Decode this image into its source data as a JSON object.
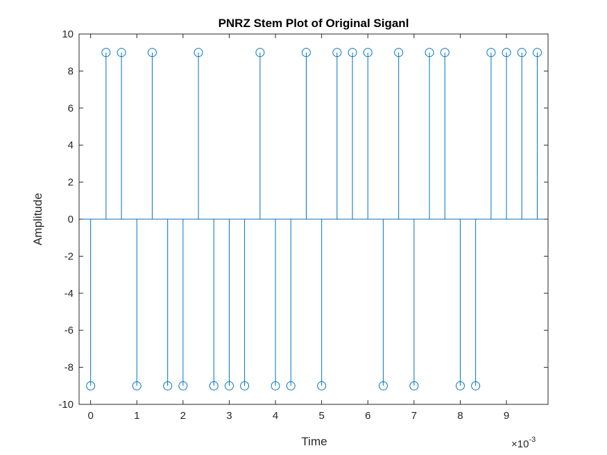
{
  "chart_data": {
    "type": "stem",
    "title": "PNRZ Stem Plot of Original Siganl",
    "xlabel": "Time",
    "ylabel": "Amplitude",
    "x_multiplier_label": "×10",
    "x_multiplier_exponent": "-3",
    "xlim": [
      -0.25,
      9.9
    ],
    "ylim": [
      -10,
      10
    ],
    "x_ticks": [
      "0",
      "1",
      "2",
      "3",
      "4",
      "5",
      "6",
      "7",
      "8",
      "9"
    ],
    "y_ticks": [
      "10",
      "8",
      "6",
      "4",
      "2",
      "0",
      "-2",
      "-4",
      "-6",
      "-8",
      "-10"
    ],
    "x_tick_values": [
      0,
      1,
      2,
      3,
      4,
      5,
      6,
      7,
      8,
      9
    ],
    "y_tick_values": [
      10,
      8,
      6,
      4,
      2,
      0,
      -2,
      -4,
      -6,
      -8,
      -10
    ],
    "x_units_note": "x values in units of 10^-3 (Time)",
    "x": [
      0,
      0.333,
      0.667,
      1.0,
      1.333,
      1.667,
      2.0,
      2.333,
      2.667,
      3.0,
      3.333,
      3.667,
      4.0,
      4.333,
      4.667,
      5.0,
      5.333,
      5.667,
      6.0,
      6.333,
      6.667,
      7.0,
      7.333,
      7.667,
      8.0,
      8.333,
      8.667,
      9.0,
      9.333,
      9.667
    ],
    "y": [
      -9,
      9,
      9,
      -9,
      9,
      -9,
      -9,
      9,
      -9,
      -9,
      -9,
      9,
      -9,
      -9,
      9,
      -9,
      9,
      9,
      9,
      -9,
      9,
      -9,
      9,
      9,
      -9,
      -9,
      9,
      9,
      9,
      9
    ],
    "series_color": "#0072BD",
    "grid": false,
    "legend": false
  }
}
